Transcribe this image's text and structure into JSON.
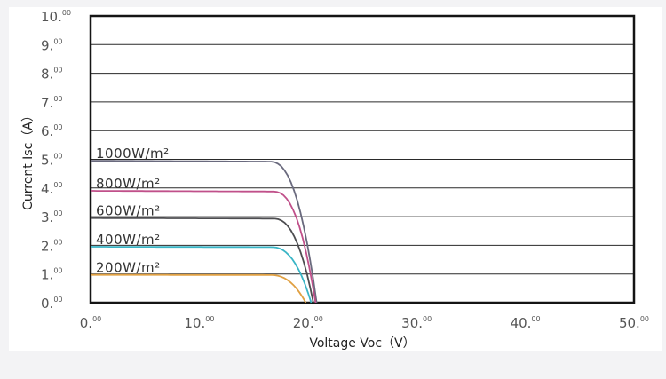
{
  "chart_data": {
    "type": "line",
    "title": "",
    "xlabel": "Voltage Voc（V）",
    "ylabel": "Current Isc（A）",
    "xlim": [
      0,
      50
    ],
    "ylim": [
      0,
      10
    ],
    "grid": true,
    "x_ticks": [
      {
        "value": 0,
        "main": "0.",
        "sup": "00"
      },
      {
        "value": 10,
        "main": "10.",
        "sup": "00"
      },
      {
        "value": 20,
        "main": "20.",
        "sup": "00"
      },
      {
        "value": 30,
        "main": "30.",
        "sup": "00"
      },
      {
        "value": 40,
        "main": "40.",
        "sup": "00"
      },
      {
        "value": 50,
        "main": "50.",
        "sup": "00"
      }
    ],
    "y_ticks": [
      {
        "value": 0,
        "main": "0.",
        "sup": "00"
      },
      {
        "value": 1,
        "main": "1.",
        "sup": "00"
      },
      {
        "value": 2,
        "main": "2.",
        "sup": "00"
      },
      {
        "value": 3,
        "main": "3.",
        "sup": "00"
      },
      {
        "value": 4,
        "main": "4.",
        "sup": "00"
      },
      {
        "value": 5,
        "main": "5.",
        "sup": "00"
      },
      {
        "value": 6,
        "main": "6.",
        "sup": "00"
      },
      {
        "value": 7,
        "main": "7.",
        "sup": "00"
      },
      {
        "value": 8,
        "main": "8.",
        "sup": "00"
      },
      {
        "value": 9,
        "main": "9.",
        "sup": "00"
      },
      {
        "value": 10,
        "main": "10.",
        "sup": "00"
      }
    ],
    "series": [
      {
        "name": "1000W/m²",
        "color": "#6a6a7e",
        "isc": 4.95,
        "voc": 20.8,
        "knee": 16.5
      },
      {
        "name": "800W/m²",
        "color": "#c0508a",
        "isc": 3.9,
        "voc": 20.7,
        "knee": 16.8
      },
      {
        "name": "600W/m²",
        "color": "#4d4d50",
        "isc": 2.95,
        "voc": 20.5,
        "knee": 16.8
      },
      {
        "name": "400W/m²",
        "color": "#3ab5c6",
        "isc": 1.95,
        "voc": 20.3,
        "knee": 16.6
      },
      {
        "name": "200W/m²",
        "color": "#e0a042",
        "isc": 0.97,
        "voc": 19.8,
        "knee": 16.5
      }
    ]
  }
}
